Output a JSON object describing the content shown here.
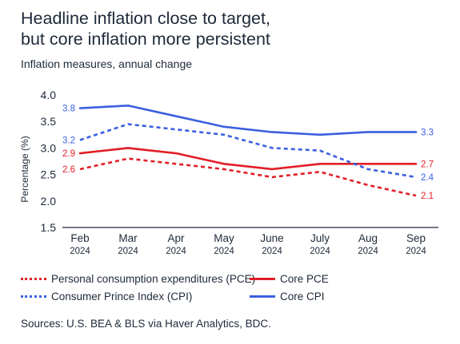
{
  "header": {
    "title_line1": "Headline inflation close to target,",
    "title_line2": "but core inflation more persistent",
    "subtitle": "Inflation measures, annual change"
  },
  "chart_data": {
    "type": "line",
    "title": "Headline inflation close to target, but core inflation more persistent",
    "subtitle": "Inflation measures, annual change",
    "xlabel": "",
    "ylabel": "Percentage (%)",
    "ylim": [
      1.5,
      4.0
    ],
    "yticks": [
      "1.5",
      "2.0",
      "2.5",
      "3.0",
      "3.5",
      "4.0"
    ],
    "categories": [
      "Feb 2024",
      "Mar 2024",
      "Apr 2024",
      "May 2024",
      "June 2024",
      "July 2024",
      "Aug 2024",
      "Sep 2024"
    ],
    "x_month_labels": [
      "Feb",
      "Mar",
      "Apr",
      "May",
      "June",
      "July",
      "Aug",
      "Sep"
    ],
    "x_year_labels": [
      "2024",
      "2024",
      "2024",
      "2024",
      "2024",
      "2024",
      "2024",
      "2024"
    ],
    "grid": false,
    "legend_position": "bottom",
    "series": [
      {
        "name": "Personal consumption expenditures (PCE)",
        "style": "dashed",
        "color": "#e11f26",
        "values": [
          2.6,
          2.8,
          2.7,
          2.6,
          2.45,
          2.55,
          2.3,
          2.1
        ],
        "labels": {
          "start": "2.6",
          "end": "2.1"
        }
      },
      {
        "name": "Core PCE",
        "style": "solid",
        "color": "#e11f26",
        "values": [
          2.9,
          3.0,
          2.9,
          2.7,
          2.6,
          2.7,
          2.7,
          2.7
        ],
        "labels": {
          "start": "2.9",
          "end": "2.7"
        }
      },
      {
        "name": "Consumer Prince Index (CPI)",
        "style": "dashed",
        "color": "#3a5fe0",
        "values": [
          3.15,
          3.45,
          3.35,
          3.25,
          3.0,
          2.95,
          2.6,
          2.45
        ],
        "labels": {
          "start": "3.2",
          "end": "2.4"
        }
      },
      {
        "name": "Core CPI",
        "style": "solid",
        "color": "#3a5fe0",
        "values": [
          3.75,
          3.8,
          3.6,
          3.4,
          3.3,
          3.25,
          3.3,
          3.3
        ],
        "labels": {
          "start": "3.8",
          "end": "3.3"
        }
      }
    ]
  },
  "legend": {
    "pce": "Personal consumption expenditures (PCE)",
    "core_pce": "Core PCE",
    "cpi": "Consumer Prince Index (CPI)",
    "core_cpi": "Core CPI"
  },
  "footer": {
    "source": "Sources: U.S. BEA & BLS via Haver Analytics, BDC."
  },
  "colors": {
    "red": "#e11f26",
    "blue": "#3a5fe0",
    "text": "#1e2939",
    "axis": "#1e2939"
  }
}
